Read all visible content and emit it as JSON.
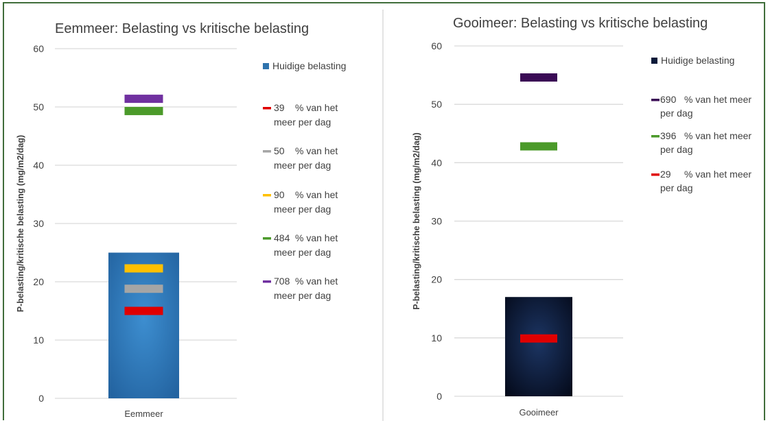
{
  "chart_data": [
    {
      "type": "bar",
      "title": "Eemmeer:  Belasting vs kritische belasting",
      "ylabel": "P-belasting/kritische belasting (mg/m2/dag)",
      "ylim": [
        0,
        60
      ],
      "yticks": [
        0,
        10,
        20,
        30,
        40,
        50,
        60
      ],
      "grid": true,
      "legend_position": "right",
      "categories": [
        "Eemmeer"
      ],
      "series": [
        {
          "name": "Huidige belasting",
          "kind": "bar",
          "values": [
            25
          ],
          "color": "#2f73ad"
        }
      ],
      "markers": [
        {
          "name_value": "39",
          "name_text": "% van het meer per dag",
          "value": 15,
          "color": "#e00000"
        },
        {
          "name_value": "50",
          "name_text": "% van het meer per dag",
          "value": 18.8,
          "color": "#a5a5a5"
        },
        {
          "name_value": "90",
          "name_text": "% van het meer per dag",
          "value": 22.3,
          "color": "#ffc000"
        },
        {
          "name_value": "484",
          "name_text": "% van het meer per dag",
          "value": 49.3,
          "color": "#4b9a2a"
        },
        {
          "name_value": "708",
          "name_text": "% van het meer per dag",
          "value": 51.4,
          "color": "#7030a0"
        }
      ]
    },
    {
      "type": "bar",
      "title": "Gooimeer:  Belasting vs kritische belasting",
      "ylabel": "P-belasting/kritische belasting (mg/m2/dag)",
      "ylim": [
        0,
        60
      ],
      "yticks": [
        0,
        10,
        20,
        30,
        40,
        50,
        60
      ],
      "grid": true,
      "legend_position": "right",
      "categories": [
        "Gooimeer"
      ],
      "series": [
        {
          "name": "Huidige belasting",
          "kind": "bar",
          "values": [
            17
          ],
          "color": "#0b1a3a"
        }
      ],
      "markers": [
        {
          "name_value": "690",
          "name_text": "% van het meer per dag",
          "value": 54.6,
          "color": "#3a0a55"
        },
        {
          "name_value": "396",
          "name_text": "% van het meer per dag",
          "value": 42.8,
          "color": "#4b9a2a"
        },
        {
          "name_value": "29",
          "name_text": "% van het meer per dag",
          "value": 9.9,
          "color": "#e00000"
        }
      ]
    }
  ]
}
